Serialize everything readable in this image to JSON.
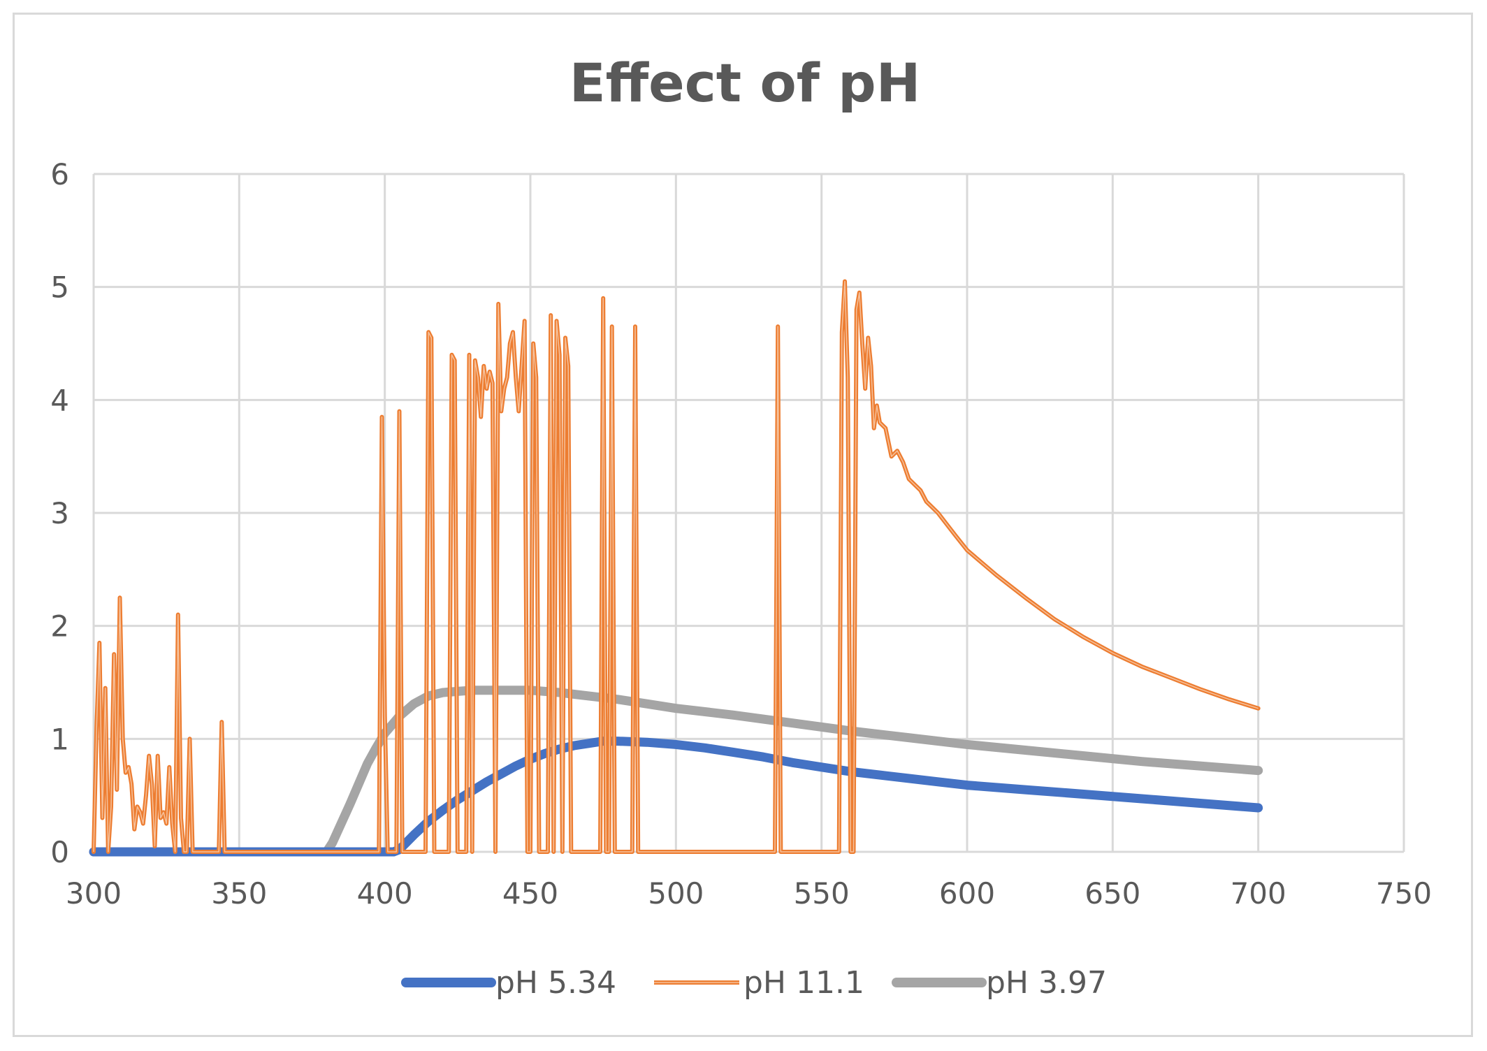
{
  "chart_data": {
    "type": "line",
    "title": "Effect of pH",
    "xlabel": "",
    "ylabel": "",
    "xlim": [
      300,
      750
    ],
    "ylim": [
      0,
      6
    ],
    "x_ticks": [
      300,
      350,
      400,
      450,
      500,
      550,
      600,
      650,
      700,
      750
    ],
    "y_ticks": [
      0,
      1,
      2,
      3,
      4,
      5,
      6
    ],
    "grid": true,
    "legend_position": "bottom",
    "series": [
      {
        "name": "pH 5.34",
        "color": "#4472c4",
        "style": "thick",
        "points": [
          [
            300,
            0
          ],
          [
            320,
            0
          ],
          [
            340,
            0
          ],
          [
            360,
            0
          ],
          [
            380,
            0
          ],
          [
            400,
            0
          ],
          [
            403,
            0
          ],
          [
            405,
            0.02
          ],
          [
            410,
            0.15
          ],
          [
            415,
            0.27
          ],
          [
            420,
            0.37
          ],
          [
            425,
            0.46
          ],
          [
            430,
            0.54
          ],
          [
            435,
            0.62
          ],
          [
            440,
            0.69
          ],
          [
            445,
            0.76
          ],
          [
            450,
            0.82
          ],
          [
            455,
            0.87
          ],
          [
            460,
            0.91
          ],
          [
            465,
            0.94
          ],
          [
            470,
            0.96
          ],
          [
            475,
            0.98
          ],
          [
            480,
            0.98
          ],
          [
            490,
            0.97
          ],
          [
            500,
            0.95
          ],
          [
            510,
            0.92
          ],
          [
            520,
            0.88
          ],
          [
            530,
            0.84
          ],
          [
            540,
            0.79
          ],
          [
            550,
            0.75
          ],
          [
            560,
            0.71
          ],
          [
            570,
            0.68
          ],
          [
            580,
            0.65
          ],
          [
            590,
            0.62
          ],
          [
            600,
            0.59
          ],
          [
            620,
            0.55
          ],
          [
            640,
            0.51
          ],
          [
            660,
            0.47
          ],
          [
            680,
            0.43
          ],
          [
            700,
            0.39
          ]
        ]
      },
      {
        "name": "pH 11.1",
        "color": "#ed7d31",
        "style": "thin",
        "points": [
          [
            300,
            0
          ],
          [
            301,
            1.1
          ],
          [
            302,
            1.85
          ],
          [
            303,
            0.3
          ],
          [
            304,
            1.45
          ],
          [
            305,
            0
          ],
          [
            306,
            0.4
          ],
          [
            307,
            1.75
          ],
          [
            308,
            0.55
          ],
          [
            309,
            2.25
          ],
          [
            310,
            1.0
          ],
          [
            311,
            0.7
          ],
          [
            312,
            0.75
          ],
          [
            313,
            0.6
          ],
          [
            314,
            0.2
          ],
          [
            315,
            0.4
          ],
          [
            316,
            0.35
          ],
          [
            317,
            0.25
          ],
          [
            318,
            0.5
          ],
          [
            319,
            0.85
          ],
          [
            320,
            0.6
          ],
          [
            321,
            0.05
          ],
          [
            322,
            0.85
          ],
          [
            323,
            0.3
          ],
          [
            324,
            0.35
          ],
          [
            325,
            0.25
          ],
          [
            326,
            0.75
          ],
          [
            327,
            0.25
          ],
          [
            328,
            0
          ],
          [
            329,
            2.1
          ],
          [
            330,
            0.3
          ],
          [
            331,
            0
          ],
          [
            332,
            0
          ],
          [
            333,
            1.0
          ],
          [
            334,
            0
          ],
          [
            335,
            0
          ],
          [
            340,
            0
          ],
          [
            343,
            0
          ],
          [
            344,
            1.15
          ],
          [
            345,
            0
          ],
          [
            350,
            0
          ],
          [
            380,
            0
          ],
          [
            398,
            0
          ],
          [
            399,
            3.85
          ],
          [
            400,
            1.2
          ],
          [
            401,
            0
          ],
          [
            402,
            0
          ],
          [
            403,
            0
          ],
          [
            404,
            0
          ],
          [
            405,
            3.9
          ],
          [
            406,
            0
          ],
          [
            410,
            0
          ],
          [
            414,
            0
          ],
          [
            415,
            4.6
          ],
          [
            416,
            4.55
          ],
          [
            417,
            0
          ],
          [
            418,
            0
          ],
          [
            420,
            0
          ],
          [
            422,
            0
          ],
          [
            423,
            4.4
          ],
          [
            424,
            4.35
          ],
          [
            425,
            0
          ],
          [
            426,
            0
          ],
          [
            428,
            0
          ],
          [
            429,
            4.4
          ],
          [
            430,
            0
          ],
          [
            431,
            4.35
          ],
          [
            432,
            4.2
          ],
          [
            433,
            3.85
          ],
          [
            434,
            4.3
          ],
          [
            435,
            4.1
          ],
          [
            436,
            4.25
          ],
          [
            437,
            4.15
          ],
          [
            438,
            0
          ],
          [
            439,
            4.85
          ],
          [
            440,
            3.9
          ],
          [
            441,
            4.1
          ],
          [
            442,
            4.2
          ],
          [
            443,
            4.5
          ],
          [
            444,
            4.6
          ],
          [
            445,
            4.2
          ],
          [
            446,
            3.9
          ],
          [
            447,
            4.3
          ],
          [
            448,
            4.7
          ],
          [
            449,
            0
          ],
          [
            450,
            0
          ],
          [
            451,
            4.5
          ],
          [
            452,
            4.2
          ],
          [
            453,
            0
          ],
          [
            454,
            0
          ],
          [
            455,
            0
          ],
          [
            456,
            0
          ],
          [
            457,
            4.75
          ],
          [
            458,
            0
          ],
          [
            459,
            4.7
          ],
          [
            460,
            4.4
          ],
          [
            461,
            0
          ],
          [
            462,
            4.55
          ],
          [
            463,
            4.3
          ],
          [
            464,
            0
          ],
          [
            465,
            0
          ],
          [
            470,
            0
          ],
          [
            474,
            0
          ],
          [
            475,
            4.9
          ],
          [
            476,
            0
          ],
          [
            477,
            0
          ],
          [
            478,
            4.65
          ],
          [
            479,
            0
          ],
          [
            480,
            0
          ],
          [
            485,
            0
          ],
          [
            486,
            4.65
          ],
          [
            487,
            0
          ],
          [
            490,
            0
          ],
          [
            500,
            0
          ],
          [
            520,
            0
          ],
          [
            534,
            0
          ],
          [
            535,
            4.65
          ],
          [
            536,
            0
          ],
          [
            540,
            0
          ],
          [
            556,
            0
          ],
          [
            557,
            4.6
          ],
          [
            558,
            5.05
          ],
          [
            559,
            4.2
          ],
          [
            560,
            0
          ],
          [
            561,
            0
          ],
          [
            562,
            4.8
          ],
          [
            563,
            4.95
          ],
          [
            564,
            4.5
          ],
          [
            565,
            4.1
          ],
          [
            566,
            4.55
          ],
          [
            567,
            4.3
          ],
          [
            568,
            3.75
          ],
          [
            569,
            3.95
          ],
          [
            570,
            3.8
          ],
          [
            572,
            3.75
          ],
          [
            574,
            3.5
          ],
          [
            576,
            3.55
          ],
          [
            578,
            3.45
          ],
          [
            580,
            3.3
          ],
          [
            582,
            3.25
          ],
          [
            584,
            3.2
          ],
          [
            586,
            3.1
          ],
          [
            588,
            3.05
          ],
          [
            590,
            3.0
          ],
          [
            593,
            2.9
          ],
          [
            596,
            2.8
          ],
          [
            600,
            2.67
          ],
          [
            610,
            2.45
          ],
          [
            620,
            2.25
          ],
          [
            630,
            2.06
          ],
          [
            640,
            1.9
          ],
          [
            650,
            1.76
          ],
          [
            660,
            1.64
          ],
          [
            670,
            1.54
          ],
          [
            680,
            1.44
          ],
          [
            690,
            1.35
          ],
          [
            700,
            1.27
          ]
        ]
      },
      {
        "name": "pH 3.97",
        "color": "#a5a5a5",
        "style": "thick",
        "points": [
          [
            300,
            0
          ],
          [
            320,
            0
          ],
          [
            340,
            0
          ],
          [
            360,
            0
          ],
          [
            380,
            0
          ],
          [
            382,
            0.08
          ],
          [
            385,
            0.25
          ],
          [
            388,
            0.42
          ],
          [
            391,
            0.6
          ],
          [
            394,
            0.78
          ],
          [
            397,
            0.92
          ],
          [
            400,
            1.05
          ],
          [
            405,
            1.2
          ],
          [
            410,
            1.31
          ],
          [
            415,
            1.38
          ],
          [
            420,
            1.41
          ],
          [
            425,
            1.42
          ],
          [
            430,
            1.43
          ],
          [
            440,
            1.43
          ],
          [
            450,
            1.43
          ],
          [
            460,
            1.41
          ],
          [
            470,
            1.38
          ],
          [
            480,
            1.35
          ],
          [
            490,
            1.31
          ],
          [
            500,
            1.27
          ],
          [
            520,
            1.21
          ],
          [
            540,
            1.14
          ],
          [
            560,
            1.07
          ],
          [
            580,
            1.01
          ],
          [
            600,
            0.95
          ],
          [
            620,
            0.9
          ],
          [
            640,
            0.85
          ],
          [
            660,
            0.8
          ],
          [
            680,
            0.76
          ],
          [
            700,
            0.72
          ]
        ]
      }
    ]
  }
}
